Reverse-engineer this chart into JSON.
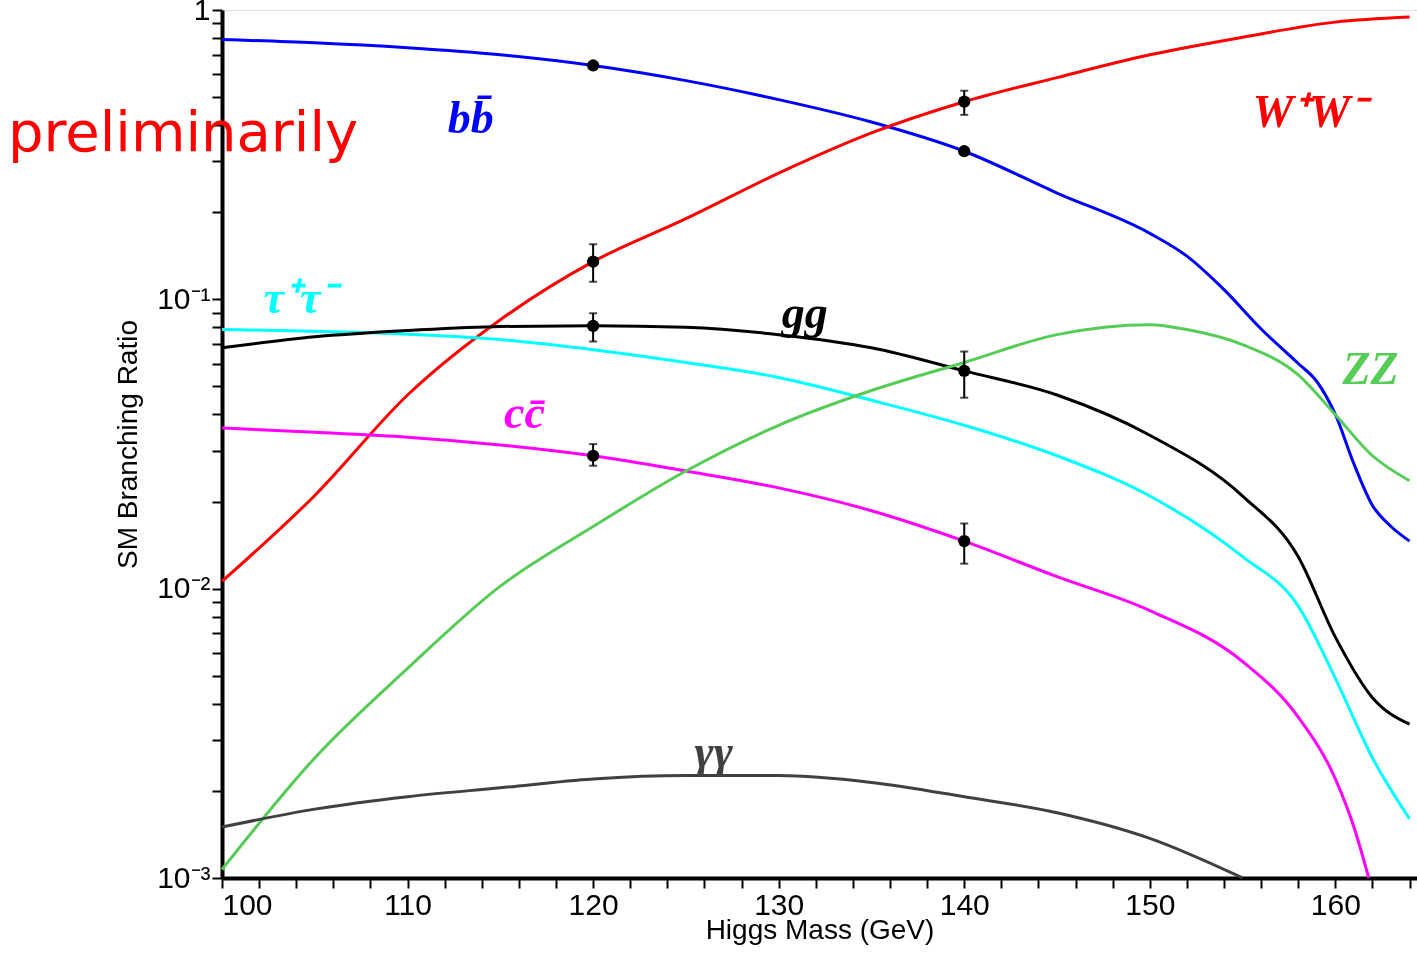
{
  "chart_data": {
    "type": "line",
    "xlabel": "Higgs Mass (GeV)",
    "ylabel": "SM Branching Ratio",
    "log": "y",
    "grid": false,
    "marker": "none",
    "line_style": "solid",
    "annotations": [
      "preliminarily"
    ],
    "xlim": [
      100,
      164.4
    ],
    "ylim": [
      0.001,
      1
    ],
    "xticks": [
      100,
      {
        "value": 102,
        "label": null
      },
      {
        "value": 104,
        "label": null
      },
      {
        "value": 106,
        "label": null
      },
      {
        "value": 108,
        "label": null
      },
      110,
      {
        "value": 112,
        "label": null
      },
      {
        "value": 114,
        "label": null
      },
      {
        "value": 116,
        "label": null
      },
      {
        "value": 118,
        "label": null
      },
      120,
      {
        "value": 122,
        "label": null
      },
      {
        "value": 124,
        "label": null
      },
      {
        "value": 126,
        "label": null
      },
      {
        "value": 128,
        "label": null
      },
      130,
      {
        "value": 132,
        "label": null
      },
      {
        "value": 134,
        "label": null
      },
      {
        "value": 136,
        "label": null
      },
      {
        "value": 138,
        "label": null
      },
      140,
      {
        "value": 142,
        "label": null
      },
      {
        "value": 144,
        "label": null
      },
      {
        "value": 146,
        "label": null
      },
      {
        "value": 148,
        "label": null
      },
      150,
      {
        "value": 152,
        "label": null
      },
      {
        "value": 154,
        "label": null
      },
      {
        "value": 156,
        "label": null
      },
      {
        "value": 158,
        "label": null
      },
      160,
      {
        "value": 162,
        "label": null
      },
      {
        "value": 164,
        "label": null
      }
    ],
    "yticks": [
      {
        "value": 0.001,
        "label": "10⁻³"
      },
      {
        "value": 0.002,
        "label": null
      },
      {
        "value": 0.003,
        "label": null
      },
      {
        "value": 0.004,
        "label": null
      },
      {
        "value": 0.005,
        "label": null
      },
      {
        "value": 0.006,
        "label": null
      },
      {
        "value": 0.007,
        "label": null
      },
      {
        "value": 0.008,
        "label": null
      },
      {
        "value": 0.009,
        "label": null
      },
      {
        "value": 0.01,
        "label": "10⁻²"
      },
      {
        "value": 0.02,
        "label": null
      },
      {
        "value": 0.03,
        "label": null
      },
      {
        "value": 0.04,
        "label": null
      },
      {
        "value": 0.05,
        "label": null
      },
      {
        "value": 0.06,
        "label": null
      },
      {
        "value": 0.07,
        "label": null
      },
      {
        "value": 0.08,
        "label": null
      },
      {
        "value": 0.09,
        "label": null
      },
      {
        "value": 0.1,
        "label": "10⁻¹"
      },
      {
        "value": 0.2,
        "label": null
      },
      {
        "value": 0.3,
        "label": null
      },
      {
        "value": 0.4,
        "label": null
      },
      {
        "value": 0.5,
        "label": null
      },
      {
        "value": 0.6,
        "label": null
      },
      {
        "value": 0.7,
        "label": null
      },
      {
        "value": 0.8,
        "label": null
      },
      {
        "value": 0.9,
        "label": null
      },
      1
    ],
    "series": [
      {
        "name": "bb̄",
        "color": "#0000ff",
        "x": [
          100,
          105,
          110,
          115,
          120,
          125,
          130,
          135,
          140,
          145,
          150,
          152,
          154,
          156,
          158,
          159,
          160,
          161,
          162,
          163,
          164
        ],
        "values": [
          0.79,
          0.77,
          0.74,
          0.7,
          0.643,
          0.57,
          0.49,
          0.41,
          0.325,
          0.233,
          0.169,
          0.141,
          0.108,
          0.079,
          0.06,
          0.052,
          0.04,
          0.027,
          0.0194,
          0.0164,
          0.0146
        ]
      },
      {
        "name": "W⁺W⁻",
        "color": "#ff0000",
        "x": [
          100,
          105,
          110,
          115,
          120,
          125,
          130,
          135,
          140,
          145,
          150,
          155,
          160,
          164
        ],
        "values": [
          0.0106,
          0.021,
          0.0467,
          0.085,
          0.135,
          0.19,
          0.273,
          0.376,
          0.482,
          0.584,
          0.7,
          0.805,
          0.908,
          0.945
        ]
      },
      {
        "name": "τ⁺τ⁻",
        "color": "#00ffff",
        "x": [
          100,
          110,
          115,
          120,
          125,
          130,
          135,
          140,
          145,
          150,
          155,
          158,
          160,
          162,
          164
        ],
        "values": [
          0.0786,
          0.0757,
          0.0726,
          0.067,
          0.0605,
          0.0537,
          0.0448,
          0.0367,
          0.0288,
          0.0209,
          0.0129,
          0.0087,
          0.0049,
          0.0026,
          0.0016
        ]
      },
      {
        "name": "gg",
        "color": "#000000",
        "x": [
          100,
          105,
          110,
          115,
          120,
          125,
          130,
          135,
          140,
          145,
          150,
          155,
          158,
          160,
          162,
          164
        ],
        "values": [
          0.068,
          0.0742,
          0.078,
          0.0806,
          0.081,
          0.08,
          0.0755,
          0.068,
          0.0566,
          0.0467,
          0.0339,
          0.0209,
          0.0129,
          0.0068,
          0.0042,
          0.0034
        ]
      },
      {
        "name": "cc̄",
        "color": "#ff00ff",
        "x": [
          100,
          105,
          110,
          115,
          120,
          125,
          130,
          135,
          140,
          145,
          150,
          155,
          158,
          160,
          161,
          161.8
        ],
        "values": [
          0.0359,
          0.0347,
          0.0334,
          0.0314,
          0.0288,
          0.0255,
          0.0223,
          0.0186,
          0.0146,
          0.011,
          0.0084,
          0.0056,
          0.0036,
          0.0022,
          0.0015,
          0.001
        ]
      },
      {
        "name": "ZZ",
        "color": "#55cc55",
        "x": [
          100,
          105,
          110,
          115,
          120,
          125,
          130,
          135,
          140,
          145,
          150,
          152,
          155,
          158,
          160,
          162,
          164
        ],
        "values": [
          0.00107,
          0.0026,
          0.0053,
          0.0102,
          0.0164,
          0.0255,
          0.0367,
          0.0484,
          0.0605,
          0.0755,
          0.0817,
          0.0786,
          0.0697,
          0.0548,
          0.0399,
          0.0288,
          0.0236
        ]
      },
      {
        "name": "γγ",
        "color": "#404040",
        "x": [
          100,
          105,
          110,
          115,
          120,
          125,
          130,
          135,
          140,
          145,
          150,
          155
        ],
        "values": [
          0.0015,
          0.00173,
          0.00191,
          0.00205,
          0.0022,
          0.00226,
          0.00226,
          0.00214,
          0.00191,
          0.00168,
          0.00137,
          0.001
        ]
      },
      {
        "type": "scatter",
        "marker": "circle",
        "color": "#000000",
        "x": [
          120,
          120,
          120,
          120,
          140,
          140,
          140,
          140
        ],
        "values": [
          0.643,
          0.135,
          0.081,
          0.0288,
          0.482,
          0.325,
          0.0566,
          0.0146
        ],
        "errors": [
          null,
          [
            0.115,
            0.155
          ],
          [
            0.0715,
            0.0895
          ],
          [
            0.0266,
            0.0316
          ],
          [
            0.434,
            0.526
          ],
          null,
          [
            0.0457,
            0.066
          ],
          [
            0.0122,
            0.0168
          ]
        ]
      }
    ]
  }
}
